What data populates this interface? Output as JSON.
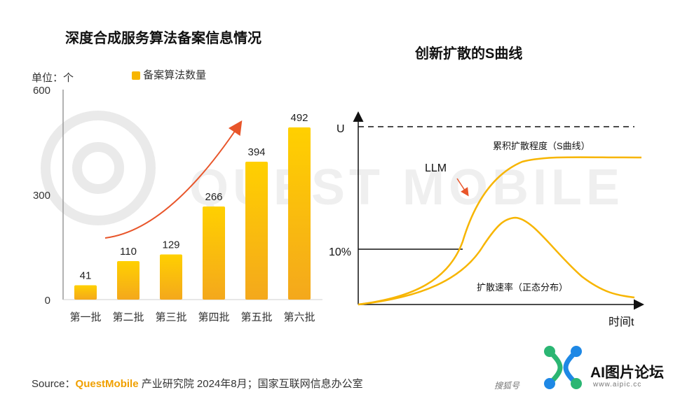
{
  "watermark": {
    "text": "QUEST MOBILE"
  },
  "chart_data": [
    {
      "type": "bar",
      "title": "深度合成服务算法备案信息情况",
      "unit_label": "单位：个",
      "legend": "备案算法数量",
      "categories": [
        "第一批",
        "第二批",
        "第三批",
        "第四批",
        "第五批",
        "第六批"
      ],
      "values": [
        41,
        110,
        129,
        266,
        394,
        492
      ],
      "y_ticks": [
        "0",
        "300",
        "600"
      ],
      "ylim": [
        0,
        600
      ],
      "grid": false,
      "colors": {
        "bar_top": "#ffd000",
        "bar_bottom": "#f4a81c",
        "trend_arrow": "#e8552a"
      }
    },
    {
      "type": "line",
      "title": "创新扩散的S曲线",
      "y_tick_labels": [
        "U",
        "10%"
      ],
      "xlabel": "时间t",
      "annotations": [
        "LLM",
        "累积扩散程度（S曲线）",
        "扩散速率（正态分布）"
      ],
      "series": [
        {
          "shape": "S-curve (cumulative adoption)"
        },
        {
          "shape": "bell curve (adoption rate)"
        }
      ],
      "colors": {
        "curve": "#f7b500",
        "arrow": "#e8552a",
        "axis": "#111111"
      }
    }
  ],
  "source": {
    "prefix": "Source：",
    "brand": "QuestMobile",
    "rest": " 产业研究院 2024年8月；国家互联网信息办公室"
  },
  "logo": {
    "title": "AI图片论坛",
    "url": "www.aipic.cc",
    "watermark_text": "搜狐号"
  }
}
